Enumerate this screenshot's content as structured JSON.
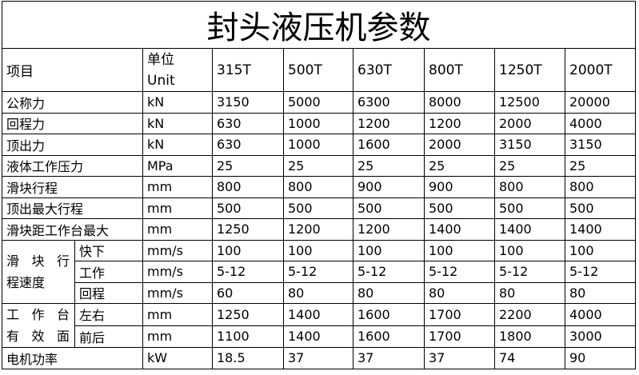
{
  "title": "封头液压机参数",
  "header": {
    "item": "项目",
    "unit_cn": "单位",
    "unit_en": "Unit",
    "models": [
      "315T",
      "500T",
      "630T",
      "800T",
      "1250T",
      "2000T"
    ]
  },
  "rows": [
    {
      "label": "公称力",
      "unit": "kN",
      "values": [
        "3150",
        "5000",
        "6300",
        "8000",
        "12500",
        "20000"
      ]
    },
    {
      "label": "回程力",
      "unit": "kN",
      "values": [
        "630",
        "1000",
        "1200",
        "1200",
        "2000",
        "4000"
      ]
    },
    {
      "label": "顶出力",
      "unit": "kN",
      "values": [
        "630",
        "1000",
        "1600",
        "2000",
        "3150",
        "3150"
      ]
    },
    {
      "label": "液体工作压力",
      "unit": "MPa",
      "values": [
        "25",
        "25",
        "25",
        "25",
        "25",
        "25"
      ]
    },
    {
      "label": "滑块行程",
      "unit": "mm",
      "values": [
        "800",
        "800",
        "900",
        "900",
        "800",
        "800"
      ]
    },
    {
      "label": "顶出最大行程",
      "unit": "mm",
      "values": [
        "500",
        "500",
        "500",
        "500",
        "500",
        "500"
      ]
    },
    {
      "label": "滑块距工作台最大",
      "unit": "mm",
      "values": [
        "1250",
        "1200",
        "1200",
        "1400",
        "1400",
        "1400"
      ]
    }
  ],
  "speed": {
    "group_line1": "滑 块 行",
    "group_line2": "程速度",
    "rows": [
      {
        "label": "快下",
        "unit": "mm/s",
        "values": [
          "100",
          "100",
          "100",
          "100",
          "100",
          "100"
        ]
      },
      {
        "label": "工作",
        "unit": "mm/s",
        "values": [
          "5-12",
          "5-12",
          "5-12",
          "5-12",
          "5-12",
          "5-12"
        ]
      },
      {
        "label": "回程",
        "unit": "mm/s",
        "values": [
          "60",
          "80",
          "80",
          "80",
          "80",
          "80"
        ]
      }
    ]
  },
  "table_area": {
    "group_line1": "工 作 台",
    "group_line2": "有 效 面",
    "rows": [
      {
        "label": "左右",
        "unit": "mm",
        "values": [
          "1250",
          "1400",
          "1600",
          "1700",
          "2200",
          "4000"
        ]
      },
      {
        "label": "前后",
        "unit": "mm",
        "values": [
          "1100",
          "1400",
          "1600",
          "1700",
          "1800",
          "3000"
        ]
      }
    ]
  },
  "motor": {
    "label": "电机功率",
    "unit": "kW",
    "values": [
      "18.5",
      "37",
      "37",
      "37",
      "74",
      "90"
    ]
  }
}
